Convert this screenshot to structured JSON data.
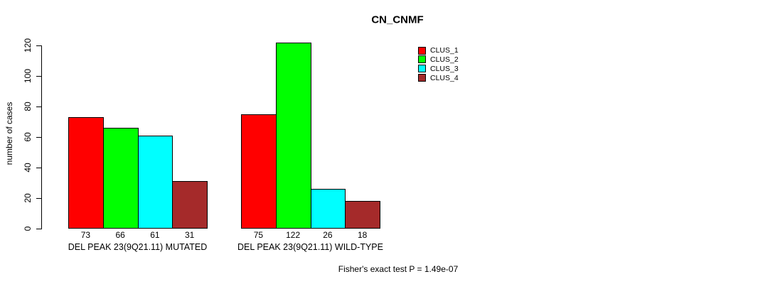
{
  "chart_data": {
    "type": "bar",
    "title": "CN_CNMF",
    "ylabel": "number of cases",
    "xlabel": "",
    "ylim": [
      0,
      140
    ],
    "yticks": [
      0,
      20,
      40,
      60,
      80,
      100,
      120
    ],
    "grid": false,
    "legend_position": "top-right",
    "bar_value_labels": true,
    "categories": [
      "DEL PEAK 23(9Q21.11) MUTATED",
      "DEL PEAK 23(9Q21.11) WILD-TYPE"
    ],
    "series": [
      {
        "name": "CLUS_1",
        "color": "#ff0000",
        "values": [
          73,
          75
        ]
      },
      {
        "name": "CLUS_2",
        "color": "#00ff00",
        "values": [
          66,
          122
        ]
      },
      {
        "name": "CLUS_3",
        "color": "#00ffff",
        "values": [
          61,
          26
        ]
      },
      {
        "name": "CLUS_4",
        "color": "#a52a2a",
        "values": [
          31,
          18
        ]
      }
    ],
    "annotation": "Fisher's exact test P = 1.49e-07"
  }
}
